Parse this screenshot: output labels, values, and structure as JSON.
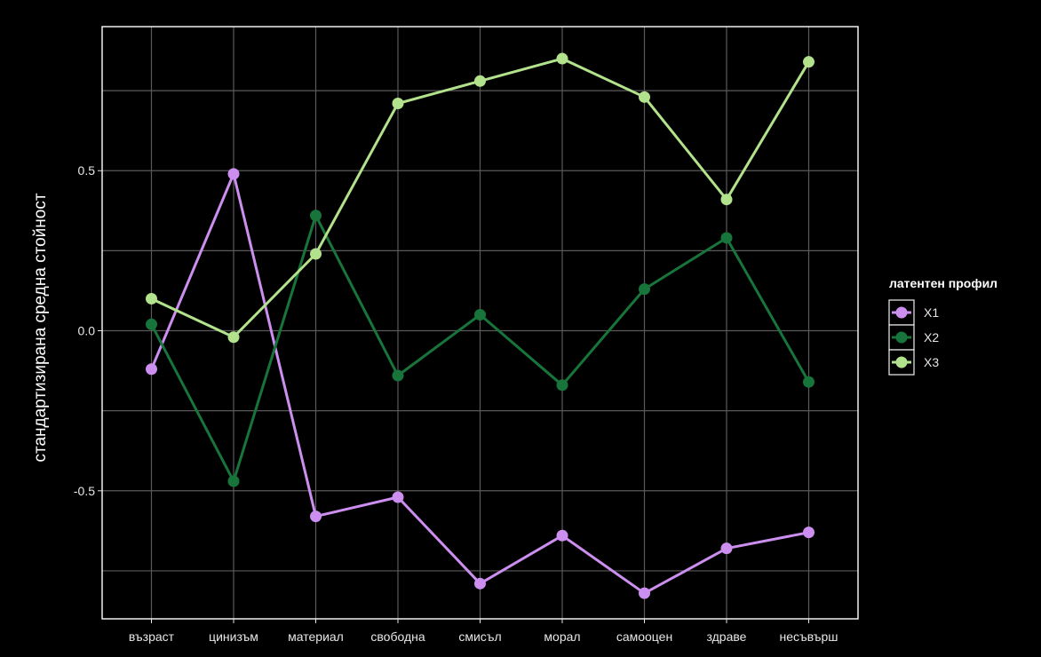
{
  "chart_data": {
    "type": "line",
    "ylabel": "стандартизирана средна стойност",
    "categories": [
      "възраст",
      "цинизъм",
      "материал",
      "свободна",
      "смисъл",
      "морал",
      "самооцен",
      "здраве",
      "несъвърш"
    ],
    "ylim": [
      -0.9,
      0.95
    ],
    "yticks": [
      -0.5,
      0.0,
      0.5
    ],
    "yticklabels": [
      "-0.5",
      "0.0",
      "0.5"
    ],
    "grid": true,
    "legend": {
      "title": "латентен профил",
      "position": "right"
    },
    "series": [
      {
        "name": "X1",
        "color": "#cc8ff0",
        "values": [
          -0.12,
          0.49,
          -0.58,
          -0.52,
          -0.79,
          -0.64,
          -0.82,
          -0.68,
          -0.63
        ]
      },
      {
        "name": "X2",
        "color": "#17753b",
        "values": [
          0.02,
          -0.47,
          0.36,
          -0.14,
          0.05,
          -0.17,
          0.13,
          0.29,
          -0.16
        ]
      },
      {
        "name": "X3",
        "color": "#b3e28c",
        "values": [
          0.1,
          -0.02,
          0.24,
          0.71,
          0.78,
          0.85,
          0.73,
          0.41,
          0.84
        ]
      }
    ]
  }
}
